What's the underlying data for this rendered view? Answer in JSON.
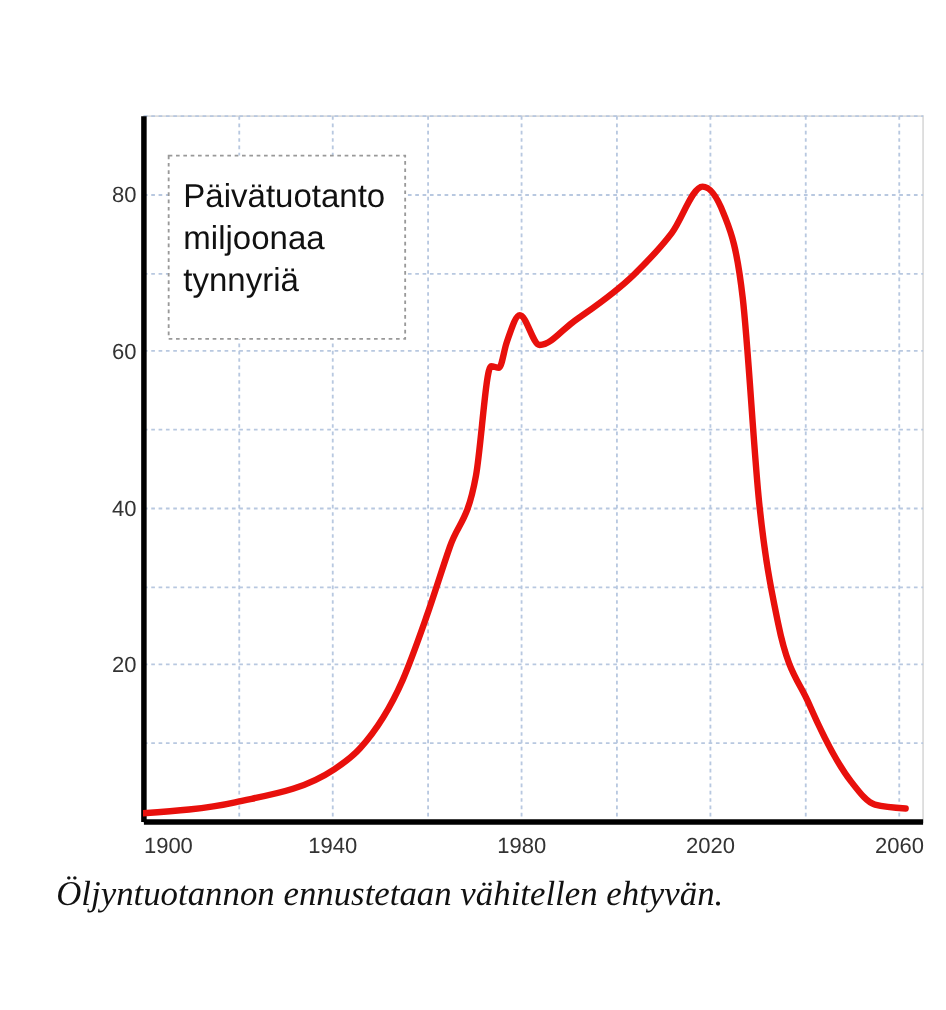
{
  "chart_data": {
    "type": "line",
    "ylabel": "Päivätuotanto miljoonaa tynnyriä",
    "annotations": [
      "Öljyntuotannon ennustetaan vähitellen ehtyvän."
    ],
    "x": [
      1900,
      1919.5,
      1940.5,
      1946,
      1955,
      1960,
      1965,
      1970.5,
      1973.7,
      1975.4,
      1977,
      1979.8,
      1984,
      1991,
      2004,
      2012,
      2018.5,
      2023,
      2027,
      2030.5,
      2034.5,
      2041,
      2050,
      2055,
      2061.5
    ],
    "series": [
      {
        "color": "#e8100c",
        "values": [
          1,
          2.4,
          6.6,
          9.3,
          18,
          26,
          35,
          44,
          58,
          57.8,
          61,
          64.5,
          60.7,
          63.6,
          69.7,
          75,
          80.9,
          77.4,
          66.7,
          40.5,
          25.2,
          15,
          5,
          2.1,
          1.6
        ]
      }
    ],
    "xlim": [
      1900,
      2065
    ],
    "ylim": [
      0,
      90
    ],
    "xticks": [
      1900,
      {
        "value": 1920,
        "label": null
      },
      1940,
      {
        "value": 1960,
        "label": null
      },
      1980,
      {
        "value": 2000,
        "label": null
      },
      2020,
      {
        "value": 2040,
        "label": null
      },
      2060
    ],
    "yticks": [
      {
        "value": 10,
        "label": null
      },
      20,
      {
        "value": 30,
        "label": null
      },
      40,
      {
        "value": 50,
        "label": null
      },
      60,
      {
        "value": 70,
        "label": null
      },
      80,
      {
        "value": 90,
        "label": null
      }
    ],
    "grid": true,
    "marker": "none",
    "line_style": "solid"
  }
}
